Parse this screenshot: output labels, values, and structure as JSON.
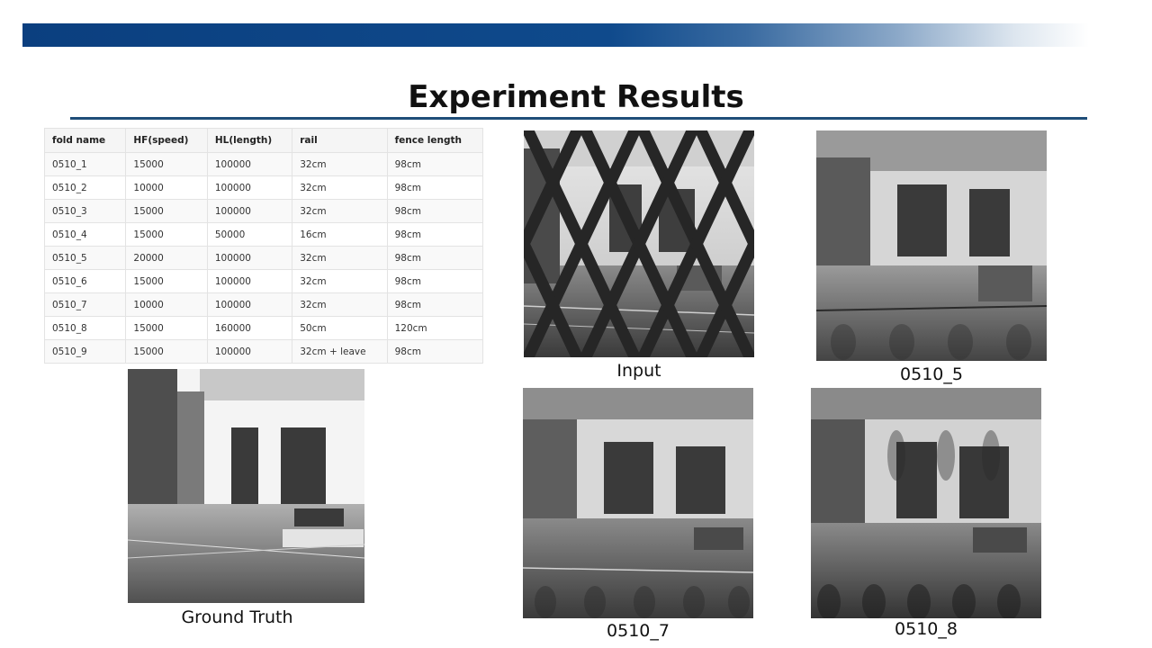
{
  "slide": {
    "title": "Experiment Results"
  },
  "table": {
    "headers": [
      "fold name",
      "HF(speed)",
      "HL(length)",
      "rail",
      "fence length"
    ],
    "rows": [
      [
        "0510_1",
        "15000",
        "100000",
        "32cm",
        "98cm"
      ],
      [
        "0510_2",
        "10000",
        "100000",
        "32cm",
        "98cm"
      ],
      [
        "0510_3",
        "15000",
        "100000",
        "32cm",
        "98cm"
      ],
      [
        "0510_4",
        "15000",
        "50000",
        "16cm",
        "98cm"
      ],
      [
        "0510_5",
        "20000",
        "100000",
        "32cm",
        "98cm"
      ],
      [
        "0510_6",
        "15000",
        "100000",
        "32cm",
        "98cm"
      ],
      [
        "0510_7",
        "10000",
        "100000",
        "32cm",
        "98cm"
      ],
      [
        "0510_8",
        "15000",
        "160000",
        "50cm",
        "120cm"
      ],
      [
        "0510_9",
        "15000",
        "100000",
        "32cm + leave",
        "98cm"
      ]
    ]
  },
  "images": {
    "input_caption": "Input",
    "ground_truth_caption": "Ground Truth",
    "result_5_caption": "0510_5",
    "result_7_caption": "0510_7",
    "result_8_caption": "0510_8"
  },
  "colors": {
    "band_dark": "#0b3f7f",
    "title_rule": "#1f4e79"
  }
}
